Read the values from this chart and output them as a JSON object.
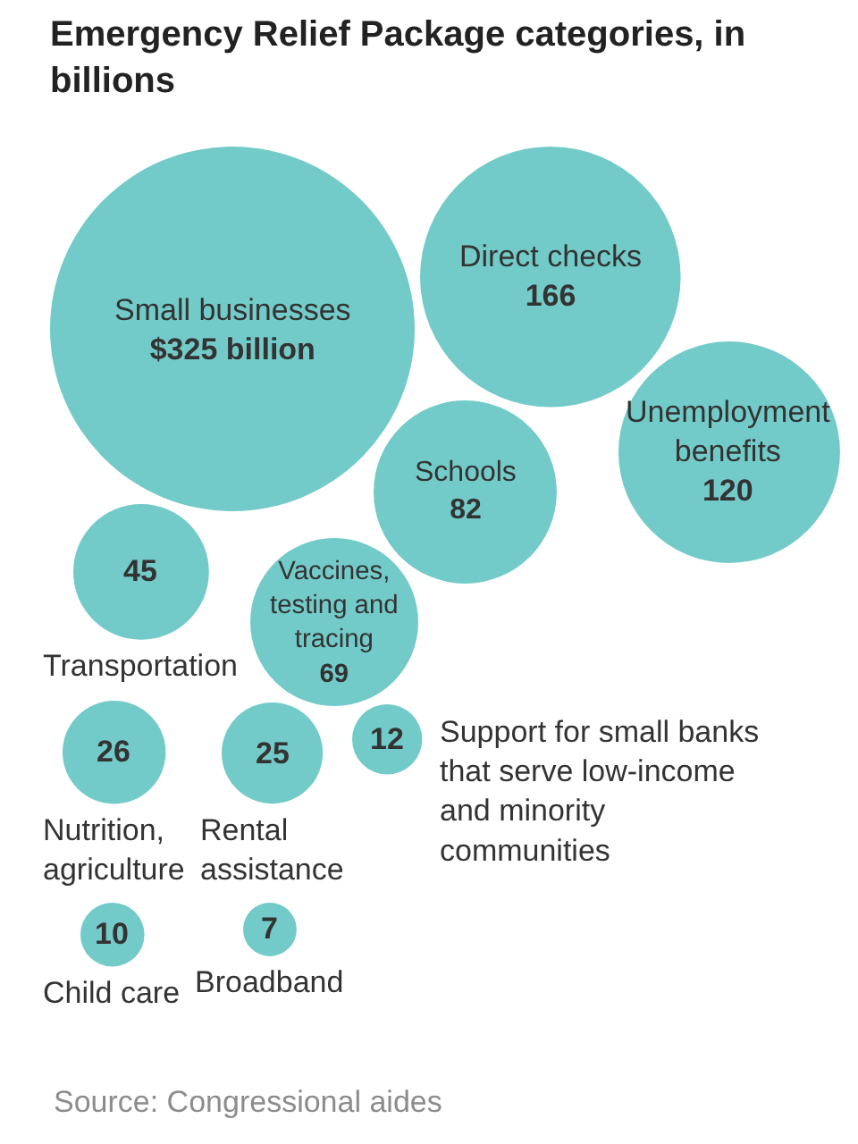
{
  "chart_data": {
    "type": "other",
    "title": "Emergency Relief Package categories, in billions",
    "categories": [
      "Small businesses",
      "Direct checks",
      "Schools",
      "Unemployment benefits",
      "Transportation",
      "Vaccines, testing and tracing",
      "Nutrition, agriculture",
      "Rental assistance",
      "Support for small banks that serve low-income and minority communities",
      "Child care",
      "Broadband"
    ],
    "values": [
      325,
      166,
      82,
      120,
      45,
      69,
      26,
      25,
      12,
      10,
      7
    ],
    "value_labels": [
      "$325 billion",
      "166",
      "82",
      "120",
      "45",
      "69",
      "26",
      "25",
      "12",
      "10",
      "7"
    ],
    "color": "#72cbc8",
    "annotations": [
      "Source: Congressional aides"
    ]
  }
}
